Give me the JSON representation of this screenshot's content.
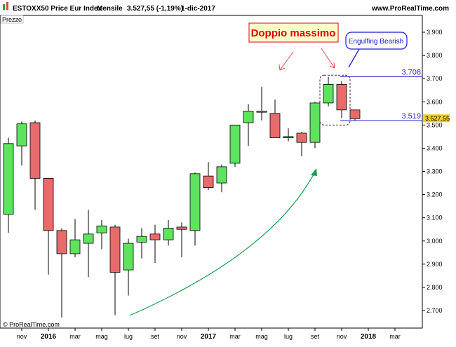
{
  "header": {
    "symbol": "ESTOXX50 Price Eur Index",
    "timeframe": "Mensile",
    "price": "3.527,55 (-1,19%)",
    "date": "1-dic-2017",
    "website": "www.ProRealTime.com"
  },
  "panel_label": "Prezzo",
  "footer": "© ProRealTime.com",
  "colors": {
    "up": "#5ee35e",
    "down": "#e86a6a",
    "wick": "#000000",
    "level_line": "#2828c8",
    "trend_arrow": "#10a050",
    "annotation_red": "#e00000",
    "price_tag_bg": "#f0d020"
  },
  "chart_data": {
    "type": "candlestick",
    "period": "monthly",
    "x": [
      "2015-10",
      "2015-11",
      "2015-12",
      "2016-01",
      "2016-02",
      "2016-03",
      "2016-04",
      "2016-05",
      "2016-06",
      "2016-07",
      "2016-08",
      "2016-09",
      "2016-10",
      "2016-11",
      "2016-12",
      "2017-01",
      "2017-02",
      "2017-03",
      "2017-04",
      "2017-05",
      "2017-06",
      "2017-07",
      "2017-08",
      "2017-09",
      "2017-10",
      "2017-11",
      "2017-12"
    ],
    "candles": [
      {
        "o": 3115,
        "h": 3445,
        "l": 3035,
        "c": 3420
      },
      {
        "o": 3410,
        "h": 3515,
        "l": 3325,
        "c": 3505
      },
      {
        "o": 3510,
        "h": 3520,
        "l": 3135,
        "c": 3270
      },
      {
        "o": 3270,
        "h": 3270,
        "l": 2855,
        "c": 3045
      },
      {
        "o": 3045,
        "h": 3055,
        "l": 2670,
        "c": 2945
      },
      {
        "o": 2945,
        "h": 3095,
        "l": 2930,
        "c": 3005
      },
      {
        "o": 2990,
        "h": 3135,
        "l": 2845,
        "c": 3030
      },
      {
        "o": 3035,
        "h": 3090,
        "l": 2965,
        "c": 3065
      },
      {
        "o": 3060,
        "h": 3070,
        "l": 2680,
        "c": 2865
      },
      {
        "o": 2875,
        "h": 3010,
        "l": 2765,
        "c": 2990
      },
      {
        "o": 2995,
        "h": 3055,
        "l": 2925,
        "c": 3020
      },
      {
        "o": 3030,
        "h": 3070,
        "l": 2905,
        "c": 3005
      },
      {
        "o": 3005,
        "h": 3090,
        "l": 2980,
        "c": 3055
      },
      {
        "o": 3060,
        "h": 3080,
        "l": 2930,
        "c": 3050
      },
      {
        "o": 3045,
        "h": 3295,
        "l": 2980,
        "c": 3290
      },
      {
        "o": 3280,
        "h": 3340,
        "l": 3220,
        "c": 3230
      },
      {
        "o": 3250,
        "h": 3330,
        "l": 3210,
        "c": 3320
      },
      {
        "o": 3335,
        "h": 3500,
        "l": 3320,
        "c": 3500
      },
      {
        "o": 3510,
        "h": 3590,
        "l": 3410,
        "c": 3560
      },
      {
        "o": 3555,
        "h": 3665,
        "l": 3520,
        "c": 3560
      },
      {
        "o": 3550,
        "h": 3610,
        "l": 3445,
        "c": 3445
      },
      {
        "o": 3445,
        "h": 3485,
        "l": 3430,
        "c": 3450
      },
      {
        "o": 3465,
        "h": 3470,
        "l": 3365,
        "c": 3425
      },
      {
        "o": 3425,
        "h": 3600,
        "l": 3400,
        "c": 3595
      },
      {
        "o": 3595,
        "h": 3708,
        "l": 3580,
        "c": 3675
      },
      {
        "o": 3675,
        "h": 3690,
        "l": 3530,
        "c": 3565
      },
      {
        "o": 3565,
        "h": 3565,
        "l": 3519,
        "c": 3527.55
      }
    ],
    "ylim": [
      2630,
      3950
    ],
    "y_ticks": [
      "2.700",
      "2.800",
      "2.900",
      "3.000",
      "3.100",
      "3.200",
      "3.300",
      "3.400",
      "3.500",
      "3.600",
      "3.700",
      "3.800",
      "3.900"
    ],
    "x_labels": [
      "nov",
      "2016",
      "mar",
      "mag",
      "lug",
      "set",
      "nov",
      "2017",
      "mar",
      "mag",
      "lug",
      "set",
      "nov",
      "2018",
      "mar"
    ],
    "levels": [
      {
        "label": "3.708",
        "value": 3708
      },
      {
        "label": "3.519",
        "value": 3519
      }
    ],
    "last_price": "3.527,55",
    "annotations": {
      "double_top": "Doppio massimo",
      "engulfing": "Engulfing Bearish"
    }
  }
}
